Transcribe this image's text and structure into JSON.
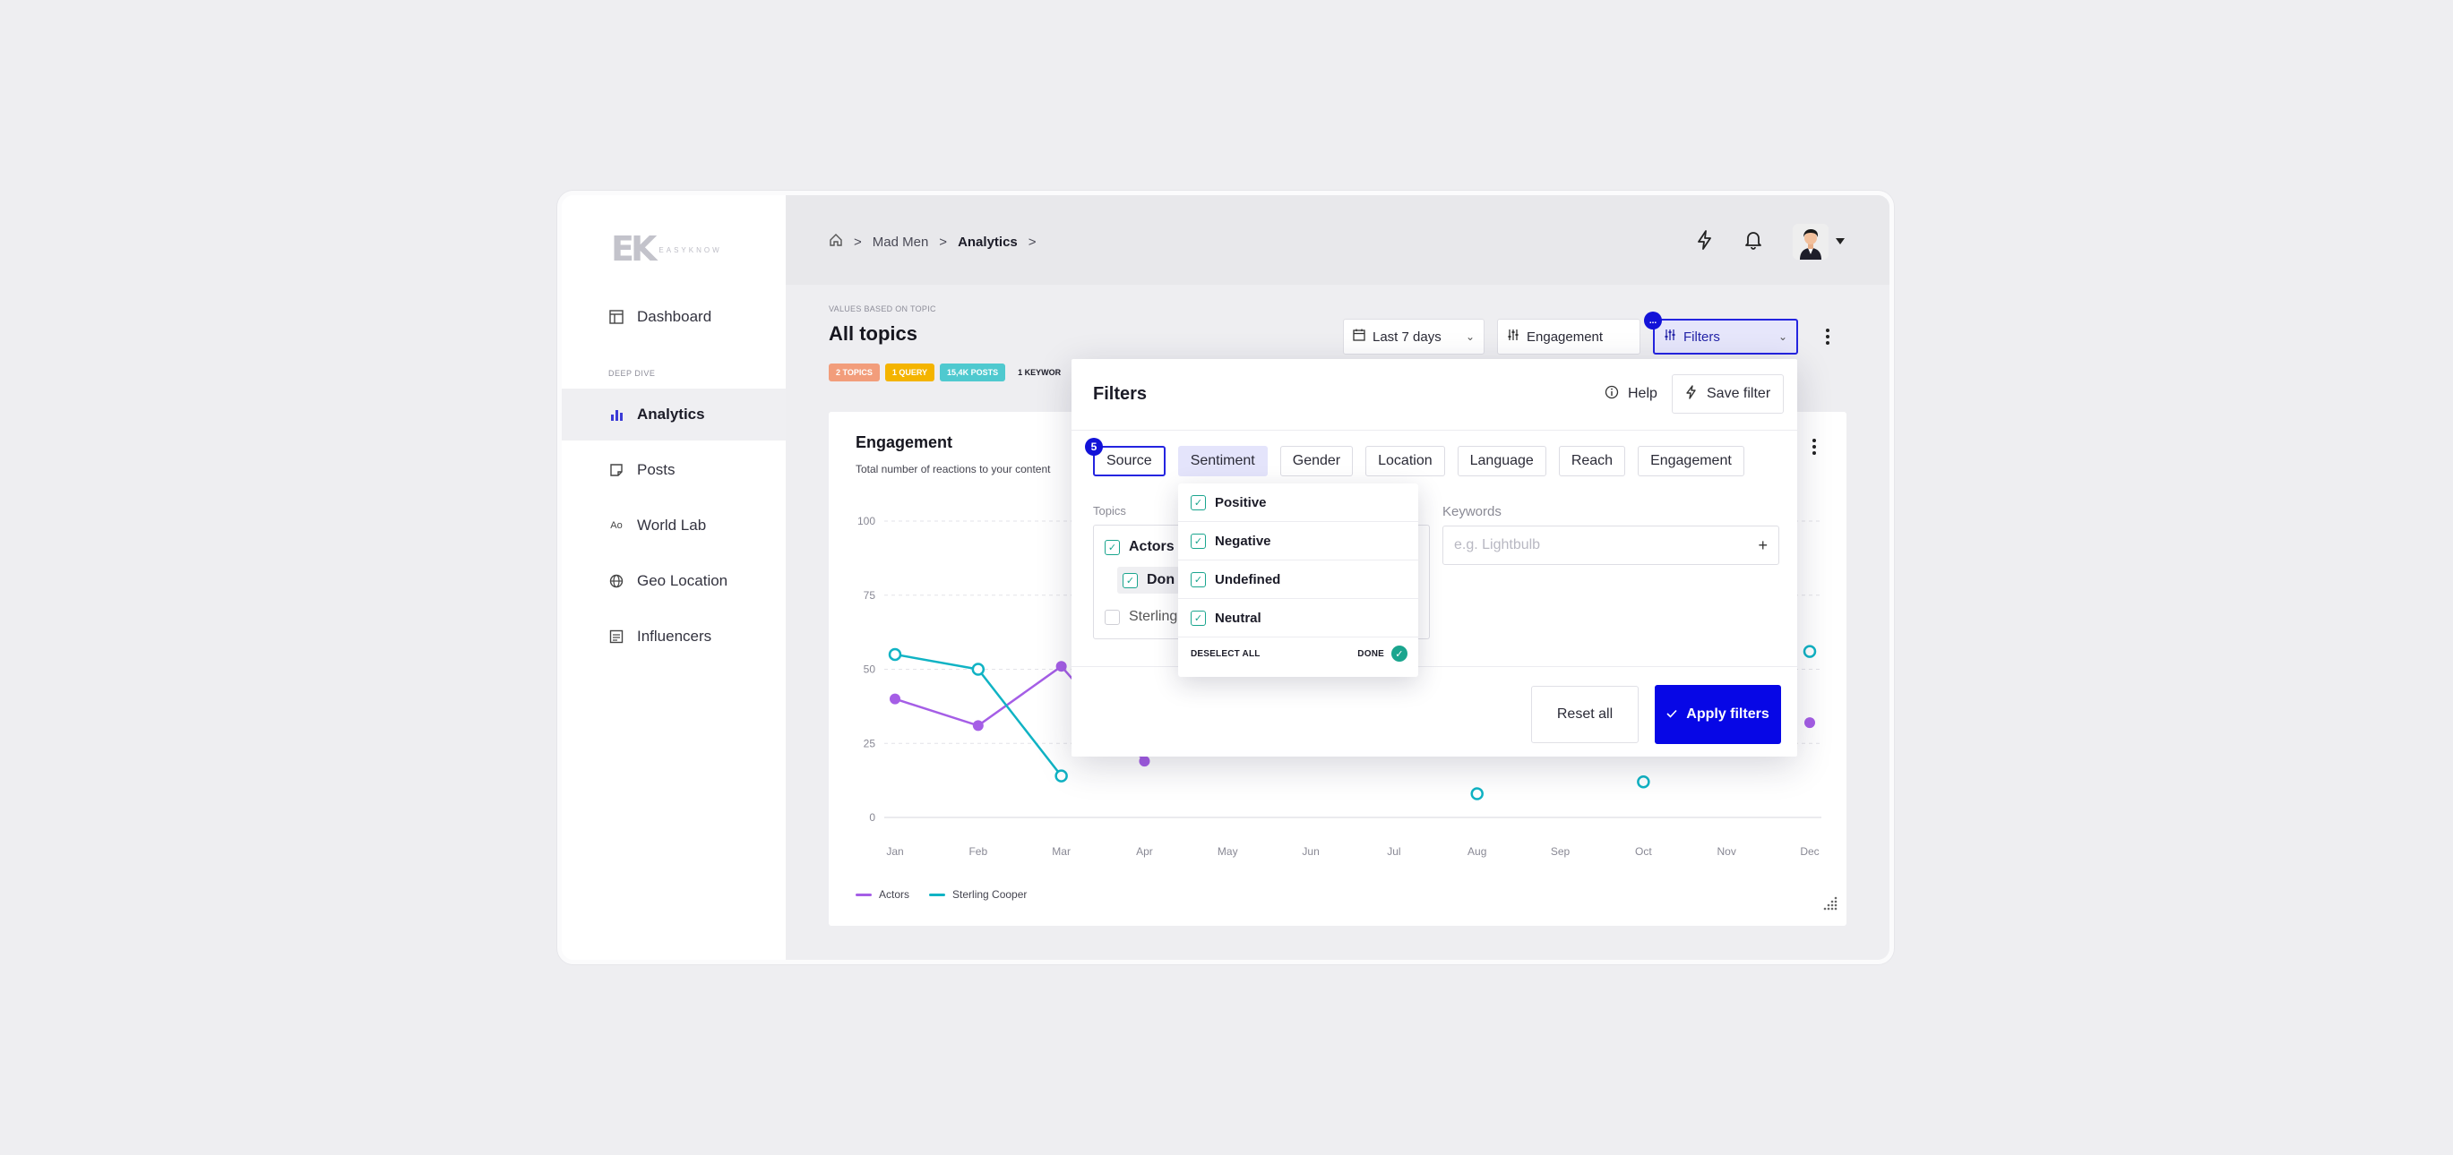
{
  "logo": {
    "mark": "EK",
    "wordmark": "EASYKNOW"
  },
  "sidebar": {
    "items": [
      {
        "label": "Dashboard"
      },
      {
        "label": "Analytics"
      },
      {
        "label": "Posts"
      },
      {
        "label": "World Lab"
      },
      {
        "label": "Geo Location"
      },
      {
        "label": "Influencers"
      }
    ],
    "section_label": "DEEP DIVE",
    "world_lab_icon_text": "Ao"
  },
  "breadcrumb": {
    "items": [
      "Mad Men",
      "Analytics"
    ],
    "separator": ">"
  },
  "header": {
    "overline": "VALUES BASED ON TOPIC",
    "title": "All topics",
    "badges": [
      {
        "label": "2 TOPICS",
        "color": "#f29d7b"
      },
      {
        "label": "1 QUERY",
        "color": "#f4b400"
      },
      {
        "label": "15,4K POSTS",
        "color": "#4fc9cf"
      },
      {
        "label": "1 KEYWOR",
        "color": ""
      }
    ]
  },
  "controls": {
    "date_range": "Last 7 days",
    "metric": "Engagement",
    "filters": "Filters",
    "filters_badge": "..."
  },
  "card": {
    "title": "Engagement",
    "subtitle": "Total number of reactions to your content"
  },
  "chart_data": {
    "type": "line",
    "categories": [
      "Jan",
      "Feb",
      "Mar",
      "Apr",
      "May",
      "Jun",
      "Jul",
      "Aug",
      "Sep",
      "Oct",
      "Nov",
      "Dec"
    ],
    "yticks": [
      0,
      25,
      50,
      75,
      100
    ],
    "ylim": [
      0,
      100
    ],
    "series": [
      {
        "name": "Actors",
        "color": "#a55ee6",
        "values": [
          40,
          31,
          51,
          19,
          null,
          null,
          null,
          null,
          null,
          null,
          null,
          32
        ]
      },
      {
        "name": "Sterling Cooper",
        "color": "#10b3c4",
        "values": [
          55,
          50,
          14,
          null,
          null,
          null,
          null,
          8,
          null,
          12,
          null,
          56
        ]
      }
    ],
    "grid": true,
    "legend": "bottom-left"
  },
  "filters_panel": {
    "title": "Filters",
    "help": "Help",
    "save": "Save filter",
    "tabs": [
      "Source",
      "Sentiment",
      "Gender",
      "Location",
      "Language",
      "Reach",
      "Engagement"
    ],
    "source_badge": "5",
    "topics_label": "Topics",
    "topics": [
      {
        "label": "Actors",
        "checked": true
      },
      {
        "label": "Don",
        "checked": true
      },
      {
        "label": "Sterling",
        "checked": false
      }
    ],
    "keywords_label": "Keywords",
    "keywords_placeholder": "e.g. Lightbulb",
    "keywords_add": "+",
    "reset": "Reset all",
    "apply": "Apply filters"
  },
  "sentiment_dropdown": {
    "options": [
      {
        "label": "Positive",
        "checked": true
      },
      {
        "label": "Negative",
        "checked": true
      },
      {
        "label": "Undefined",
        "checked": true
      },
      {
        "label": "Neutral",
        "checked": true
      }
    ],
    "deselect": "DESELECT ALL",
    "done": "DONE"
  }
}
